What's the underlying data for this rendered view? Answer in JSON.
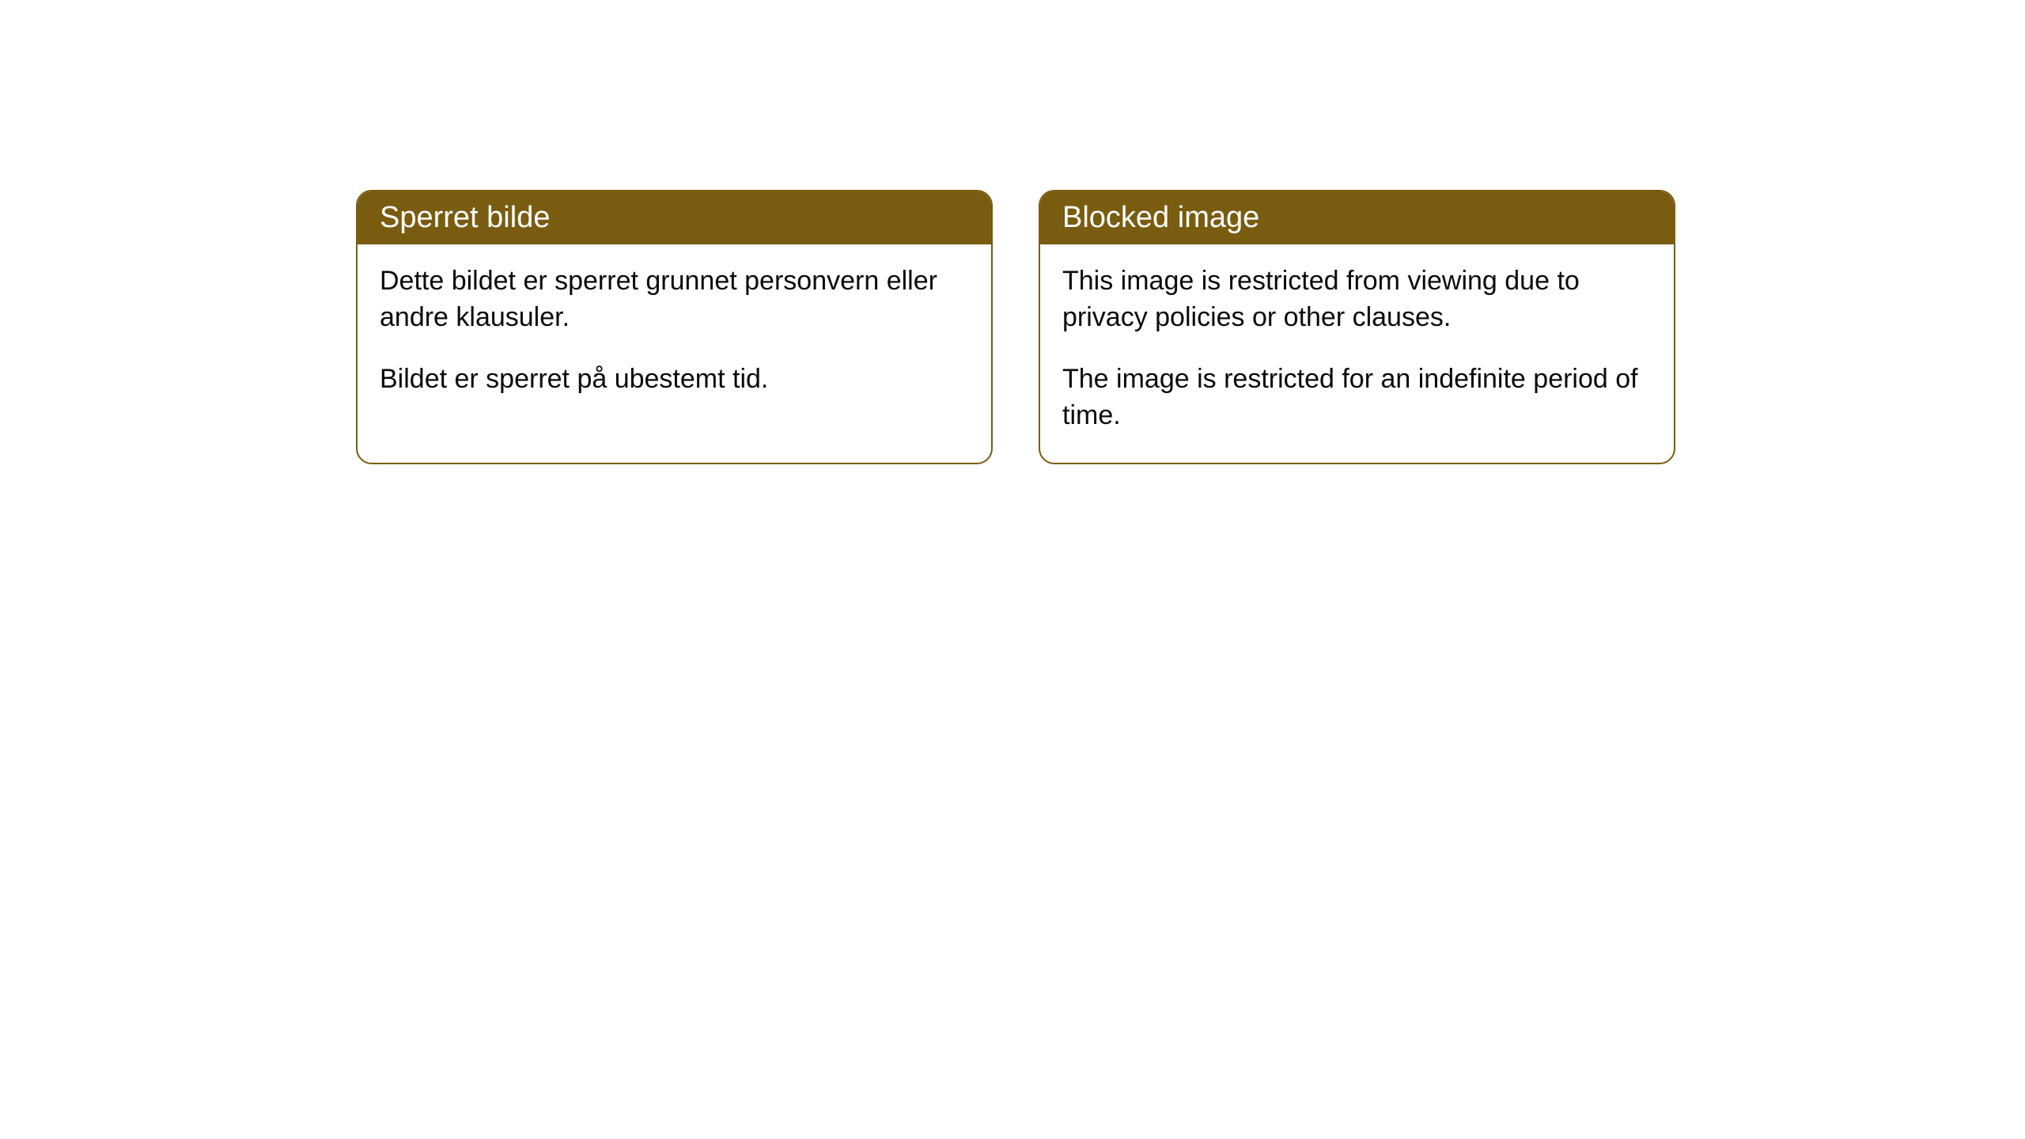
{
  "cards": [
    {
      "title": "Sperret bilde",
      "paragraph1": "Dette bildet er sperret grunnet personvern eller andre klausuler.",
      "paragraph2": "Bildet er sperret på ubestemt tid."
    },
    {
      "title": "Blocked image",
      "paragraph1": "This image is restricted from viewing due to privacy policies or other clauses.",
      "paragraph2": "The image is restricted for an indefinite period of time."
    }
  ],
  "style": {
    "header_bg_color": "#7a5c11",
    "header_text_color": "#ffffff",
    "border_color": "#7a5c11",
    "body_text_color": "#0a0a0a",
    "background_color": "#ffffff",
    "border_radius": 20,
    "header_fontsize": 38,
    "body_fontsize": 34
  }
}
